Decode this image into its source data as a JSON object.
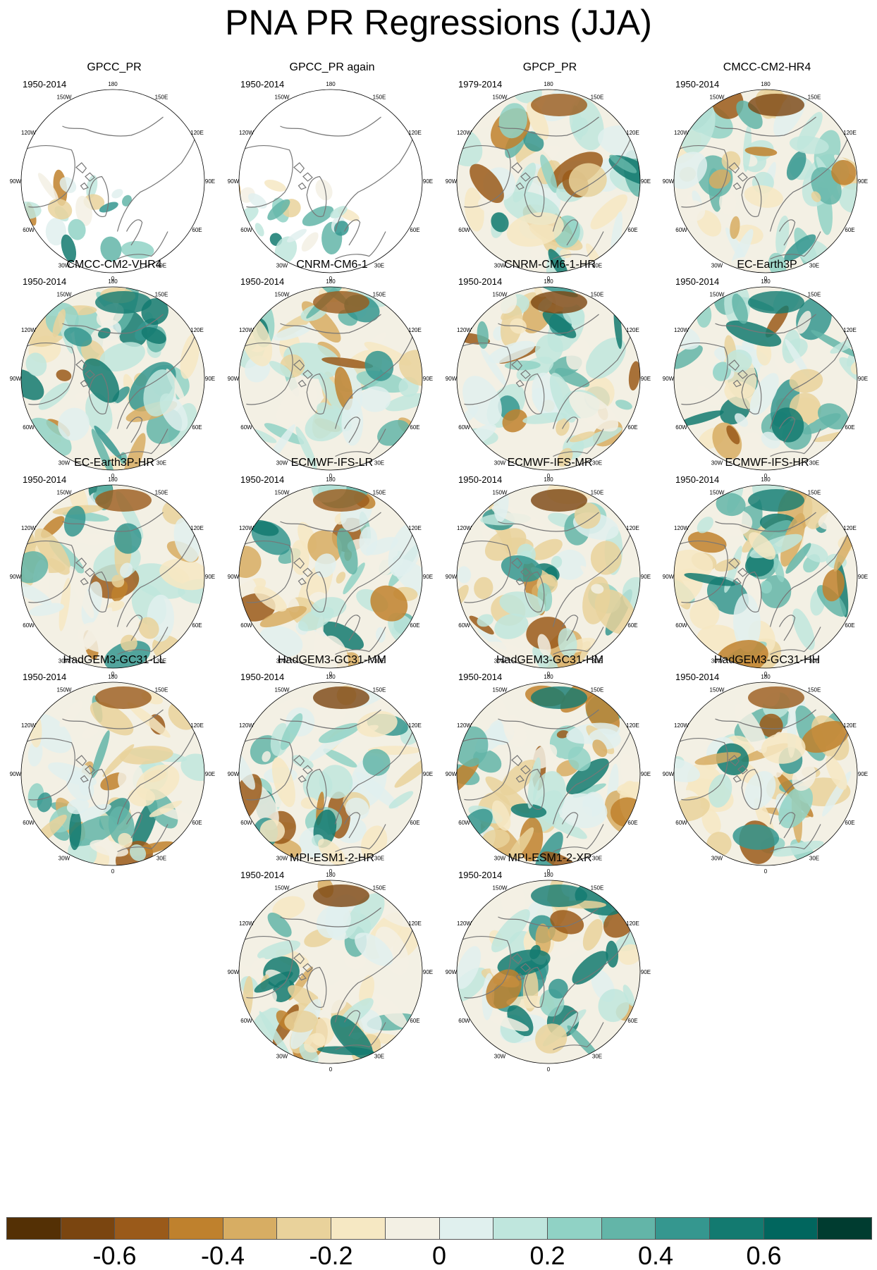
{
  "title": "PNA PR Regressions (JJA)",
  "lon_labels": [
    "180",
    "150E",
    "120E",
    "90E",
    "60E",
    "30E",
    "0",
    "30W",
    "60W",
    "90W",
    "120W",
    "150W"
  ],
  "panels": [
    {
      "title": "GPCC_PR",
      "period": "1950-2014",
      "land_only": true
    },
    {
      "title": "GPCC_PR again",
      "period": "1950-2014",
      "land_only": true
    },
    {
      "title": "GPCP_PR",
      "period": "1979-2014"
    },
    {
      "title": "CMCC-CM2-HR4",
      "period": "1950-2014"
    },
    {
      "title": "CMCC-CM2-VHR4",
      "period": "1950-2014"
    },
    {
      "title": "CNRM-CM6-1",
      "period": "1950-2014"
    },
    {
      "title": "CNRM-CM6-1-HR",
      "period": "1950-2014"
    },
    {
      "title": "EC-Earth3P",
      "period": "1950-2014"
    },
    {
      "title": "EC-Earth3P-HR",
      "period": "1950-2014"
    },
    {
      "title": "ECMWF-IFS-LR",
      "period": "1950-2014"
    },
    {
      "title": "ECMWF-IFS-MR",
      "period": "1950-2014"
    },
    {
      "title": "ECMWF-IFS-HR",
      "period": "1950-2014"
    },
    {
      "title": "HadGEM3-GC31-LL",
      "period": "1950-2014"
    },
    {
      "title": "HadGEM3-GC31-MM",
      "period": "1950-2014"
    },
    {
      "title": "HadGEM3-GC31-HM",
      "period": "1950-2014"
    },
    {
      "title": "HadGEM3-GC31-HH",
      "period": "1950-2014"
    },
    {
      "title": "MPI-ESM1-2-HR",
      "period": "1950-2014"
    },
    {
      "title": "MPI-ESM1-2-XR",
      "period": "1950-2014"
    }
  ],
  "colorbar": {
    "colors": [
      "#543005",
      "#7a4510",
      "#9a5a1a",
      "#bf812d",
      "#d7ad63",
      "#e9d29b",
      "#f6e8c3",
      "#f3f0e4",
      "#e0f0ee",
      "#bfe6dd",
      "#90d2c5",
      "#63b5a8",
      "#35978f",
      "#137a70",
      "#01665e",
      "#003c30"
    ],
    "labels": [
      "-0.6",
      "-0.4",
      "-0.2",
      "0",
      "0.2",
      "0.4",
      "0.6"
    ],
    "label_values": [
      -0.6,
      -0.4,
      -0.2,
      0,
      0.2,
      0.4,
      0.6
    ],
    "range": [
      -0.8,
      0.8
    ]
  }
}
